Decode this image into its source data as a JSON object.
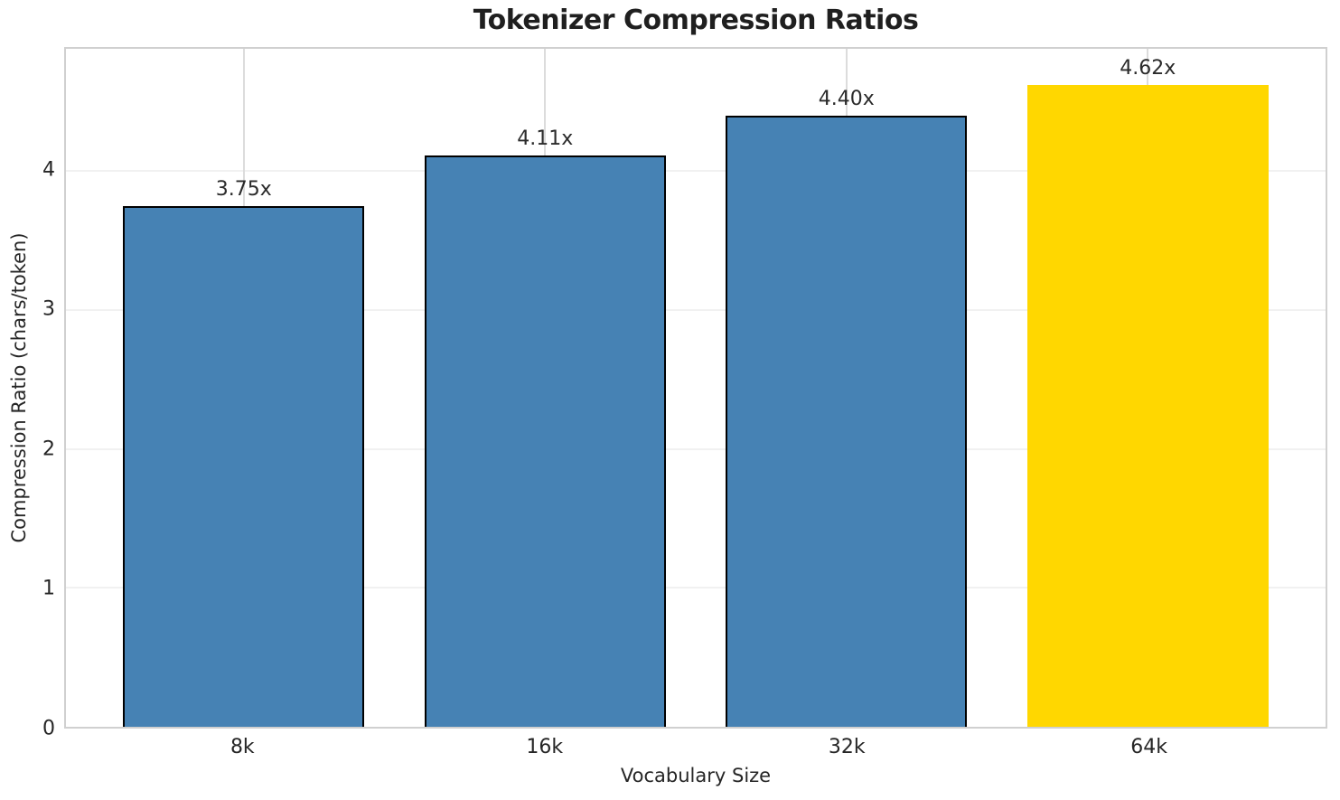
{
  "chart_data": {
    "type": "bar",
    "title": "Tokenizer Compression Ratios",
    "xlabel": "Vocabulary Size",
    "ylabel": "Compression Ratio (chars/token)",
    "categories": [
      "8k",
      "16k",
      "32k",
      "64k"
    ],
    "values": [
      3.75,
      4.11,
      4.4,
      4.62
    ],
    "bar_labels": [
      "3.75x",
      "4.11x",
      "4.40x",
      "4.62x"
    ],
    "bar_colors": [
      "#4682B4",
      "#4682B4",
      "#4682B4",
      "#FFD700"
    ],
    "bar_edge_colors": [
      "#000000",
      "#000000",
      "#000000",
      "none"
    ],
    "yticks": [
      "0",
      "1",
      "2",
      "3",
      "4"
    ],
    "ytick_values": [
      0,
      1,
      2,
      3,
      4
    ],
    "ylim": [
      0,
      4.88
    ],
    "xlim": [
      -0.59,
      3.59
    ],
    "bar_width": 0.8,
    "grid": "both",
    "legend": "none",
    "style": {
      "background": "#ffffff",
      "spine_color": "#d0d0d0",
      "hgrid_color": "#f1f1f1",
      "vgrid_color": "#dcdcdc",
      "text_color": "#262626"
    }
  }
}
